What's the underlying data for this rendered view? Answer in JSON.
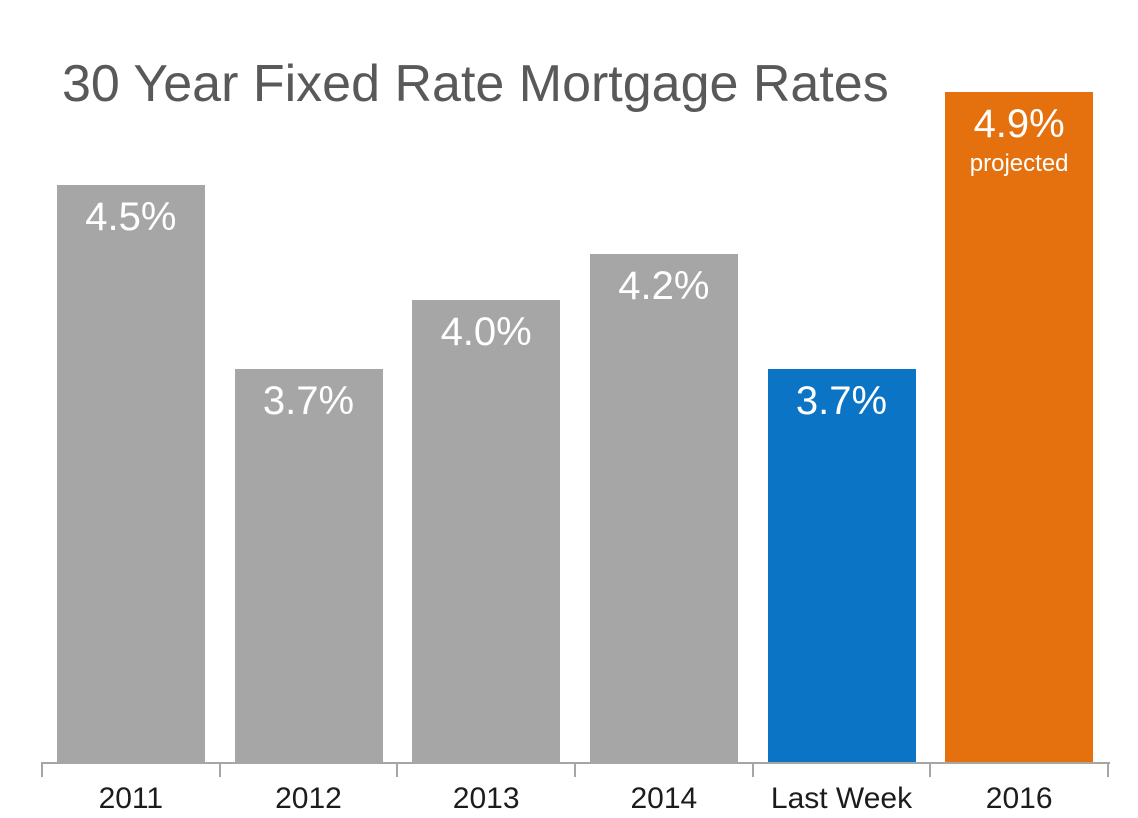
{
  "chart_data": {
    "type": "bar",
    "title": "30 Year Fixed Rate Mortgage Rates",
    "categories": [
      "2011",
      "2012",
      "2013",
      "2014",
      "Last Week",
      "2016"
    ],
    "values": [
      4.5,
      3.7,
      4.0,
      4.2,
      3.7,
      4.9
    ],
    "value_labels": [
      "4.5%",
      "3.7%",
      "4.0%",
      "4.2%",
      "3.7%",
      "4.9%"
    ],
    "sublabels": [
      "",
      "",
      "",
      "",
      "",
      "projected"
    ],
    "bar_colors": [
      "#a6a6a6",
      "#a6a6a6",
      "#a6a6a6",
      "#a6a6a6",
      "#0b74c5",
      "#e4710e"
    ],
    "ylim": [
      2.0,
      5.0
    ],
    "xlabel": "",
    "ylabel": "",
    "grid": false,
    "legend": null,
    "y_axis_visible": false,
    "x_axis_line_visible": true
  },
  "colors": {
    "background": "#ffffff",
    "title_text": "#595959",
    "axis_line": "#a6a6a6",
    "category_text": "#1c1c1c",
    "bar_value_text": "#ffffff",
    "gray_bar": "#a6a6a6",
    "blue_bar": "#0b74c5",
    "orange_bar": "#e4710e"
  }
}
